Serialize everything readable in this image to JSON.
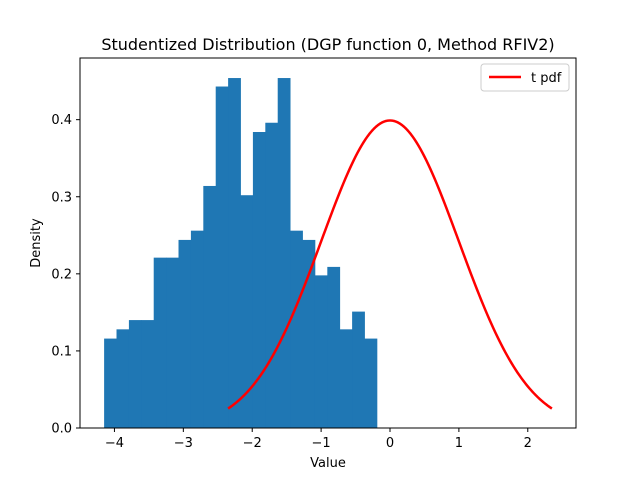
{
  "chart_data": {
    "type": "histogram",
    "title": "Studentized Distribution (DGP function 0, Method RFIV2)",
    "xlabel": "Value",
    "ylabel": "Density",
    "xlim": [
      -4.5,
      2.7
    ],
    "ylim": [
      0,
      0.48
    ],
    "x_ticks": [
      -4,
      -3,
      -2,
      -1,
      0,
      1,
      2
    ],
    "y_ticks": [
      0.0,
      0.1,
      0.2,
      0.3,
      0.4
    ],
    "x_tick_labels": [
      "−4",
      "−3",
      "−2",
      "−1",
      "0",
      "1",
      "2"
    ],
    "y_tick_labels": [
      "0.0",
      "0.1",
      "0.2",
      "0.3",
      "0.4"
    ],
    "grid": false,
    "legend_position": "top-right",
    "bar_color": "#1f77b4",
    "histogram": {
      "bin_edges": [
        -4.15,
        -3.97,
        -3.79,
        -3.61,
        -3.43,
        -3.25,
        -3.07,
        -2.89,
        -2.71,
        -2.53,
        -2.35,
        -2.17,
        -1.99,
        -1.81,
        -1.63,
        -1.45,
        -1.27,
        -1.09,
        -0.91,
        -0.73,
        -0.55,
        -0.37,
        -0.19
      ],
      "values": [
        0.116,
        0.128,
        0.14,
        0.14,
        0.221,
        0.221,
        0.244,
        0.256,
        0.314,
        0.443,
        0.454,
        0.302,
        0.384,
        0.396,
        0.454,
        0.256,
        0.244,
        0.198,
        0.209,
        0.128,
        0.151,
        0.116
      ]
    },
    "series": [
      {
        "name": "t pdf",
        "type": "line",
        "color": "#ff0000",
        "distribution": "t",
        "x_range": [
          -2.35,
          2.35
        ],
        "peak": 0.399
      }
    ]
  }
}
